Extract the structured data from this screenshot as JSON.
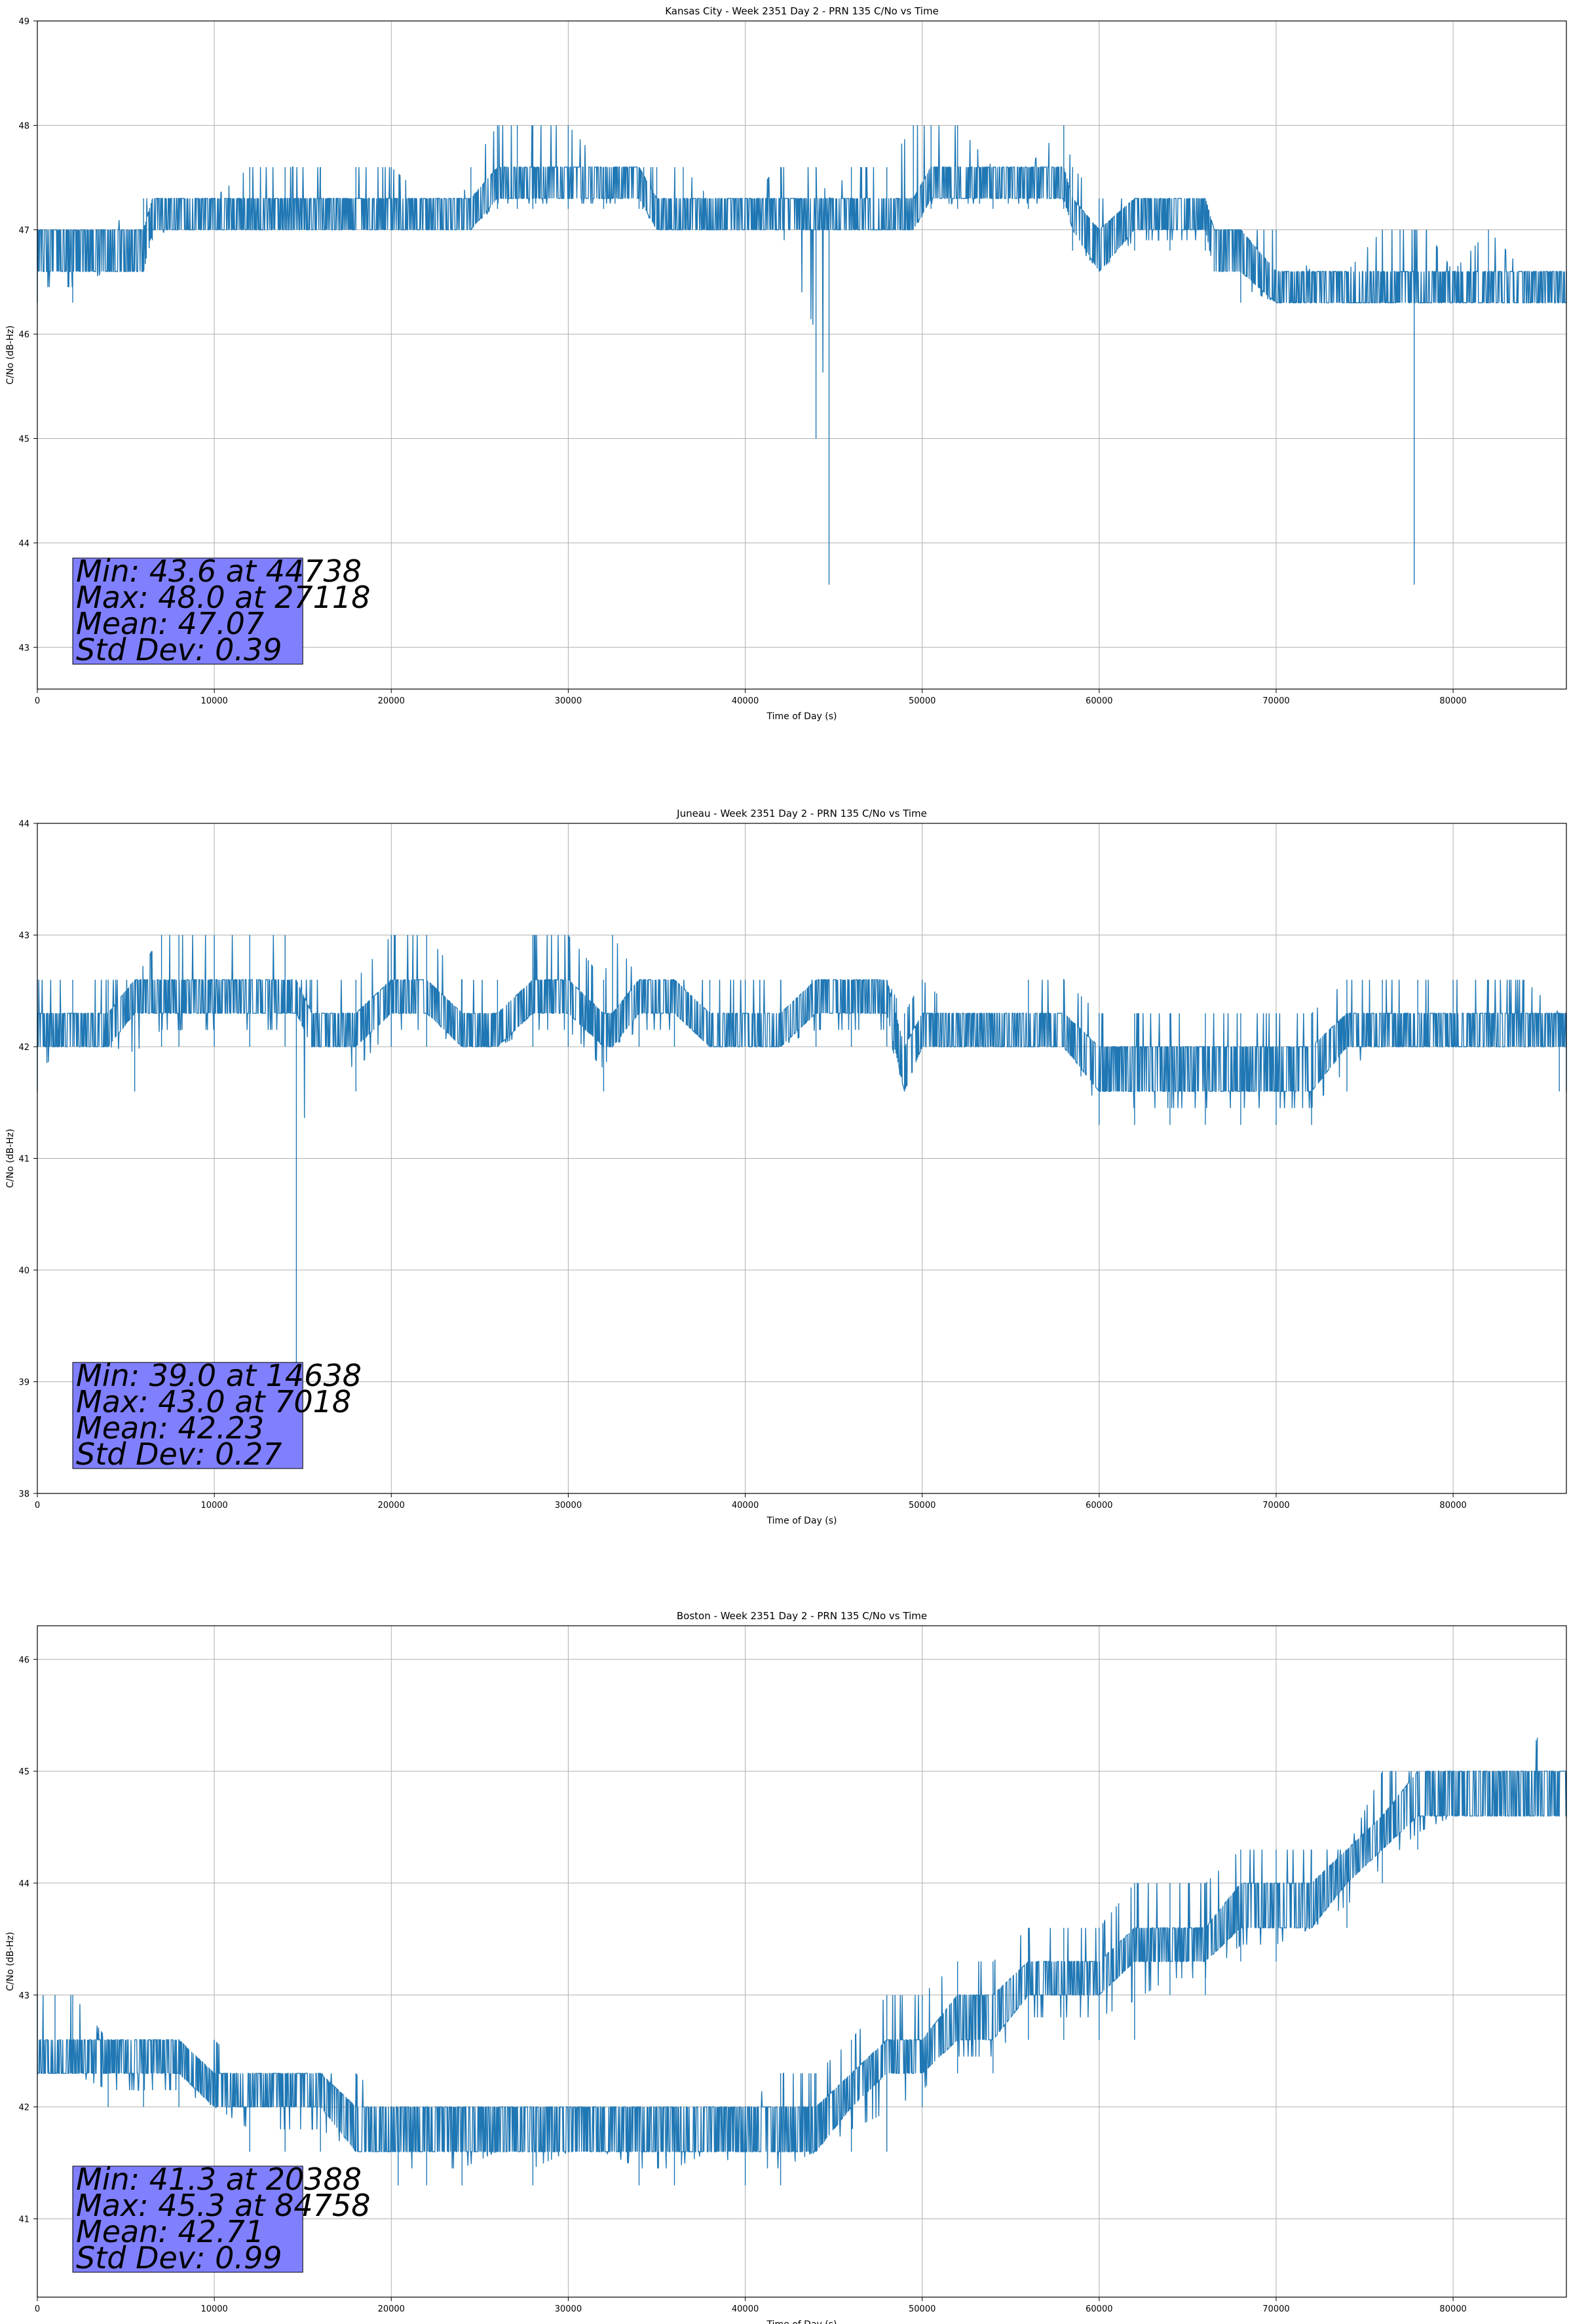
{
  "figure": {
    "colors": {
      "line": "#1f77b4",
      "grid": "#b0b0b0",
      "stats_box": "#8080ff"
    }
  },
  "chart_data": [
    {
      "type": "line",
      "title": "Kansas City - Week 2351 Day 2 - PRN 135 C/No vs Time",
      "xlabel": "Time of Day (s)",
      "ylabel": "C/No (dB-Hz)",
      "xlim": [
        0,
        86400
      ],
      "ylim": [
        42.6,
        49.0
      ],
      "xticks": [
        0,
        10000,
        20000,
        30000,
        40000,
        50000,
        60000,
        70000,
        80000
      ],
      "yticks": [
        43,
        44,
        45,
        46,
        47,
        48,
        49
      ],
      "grid": true,
      "stats": [
        "Min: 43.6 at 44738",
        "Max: 48.0 at 27118",
        "Mean: 47.07",
        "Std Dev: 0.39"
      ],
      "series": [
        {
          "x": [
            0,
            2000,
            4000,
            6000,
            6500,
            8000,
            10000,
            12000,
            14000,
            16000,
            18000,
            20000,
            22000,
            24000,
            24500,
            26000,
            27118,
            28000,
            30000,
            32000,
            34000,
            35000,
            36500,
            38000,
            40000,
            42000,
            44000,
            44738,
            46000,
            48000,
            49500,
            50500,
            52000,
            54000,
            56000,
            58000,
            58500,
            60000,
            62000,
            64000,
            66000,
            66500,
            68000,
            70000,
            72000,
            74000,
            76000,
            77000,
            77800,
            78500,
            80000,
            82000,
            84000,
            86400
          ],
          "y_low": [
            46.3,
            46.3,
            46.6,
            46.6,
            46.9,
            47.0,
            47.0,
            47.0,
            47.0,
            47.0,
            47.0,
            47.0,
            47.0,
            47.0,
            47.0,
            47.2,
            47.2,
            47.2,
            47.2,
            47.2,
            47.2,
            47.0,
            47.0,
            47.0,
            47.0,
            47.0,
            45.0,
            43.6,
            47.0,
            47.0,
            47.0,
            47.2,
            47.2,
            47.2,
            47.2,
            47.2,
            46.8,
            46.6,
            46.8,
            46.8,
            46.8,
            46.6,
            46.3,
            46.3,
            46.3,
            46.3,
            46.3,
            46.3,
            43.6,
            46.3,
            46.3,
            46.3,
            46.3,
            46.3
          ],
          "y_mid_low": [
            46.6,
            46.6,
            46.6,
            46.6,
            47.0,
            47.0,
            47.0,
            47.0,
            47.0,
            47.0,
            47.0,
            47.0,
            47.0,
            47.0,
            47.0,
            47.3,
            47.3,
            47.3,
            47.3,
            47.3,
            47.3,
            47.0,
            47.0,
            47.0,
            47.0,
            47.0,
            47.0,
            47.0,
            47.0,
            47.0,
            47.0,
            47.3,
            47.3,
            47.3,
            47.3,
            47.3,
            47.0,
            46.6,
            47.0,
            47.0,
            47.0,
            46.6,
            46.6,
            46.3,
            46.3,
            46.3,
            46.3,
            46.3,
            46.3,
            46.3,
            46.3,
            46.3,
            46.3,
            46.3
          ],
          "y_mid_high": [
            47.0,
            47.0,
            47.0,
            47.0,
            47.3,
            47.3,
            47.3,
            47.3,
            47.3,
            47.3,
            47.3,
            47.3,
            47.3,
            47.3,
            47.3,
            47.6,
            47.6,
            47.6,
            47.6,
            47.6,
            47.6,
            47.3,
            47.3,
            47.3,
            47.3,
            47.3,
            47.3,
            47.3,
            47.3,
            47.3,
            47.3,
            47.6,
            47.6,
            47.6,
            47.6,
            47.6,
            47.3,
            47.0,
            47.3,
            47.3,
            47.3,
            47.0,
            47.0,
            46.6,
            46.6,
            46.6,
            46.6,
            46.6,
            46.6,
            46.6,
            46.6,
            46.6,
            46.6,
            46.6
          ],
          "y_high": [
            47.0,
            47.0,
            47.0,
            47.3,
            47.3,
            47.3,
            47.3,
            47.6,
            47.6,
            47.6,
            47.6,
            47.6,
            47.3,
            47.3,
            47.6,
            48.0,
            48.0,
            48.0,
            48.0,
            47.6,
            47.6,
            47.6,
            47.6,
            47.3,
            47.3,
            47.6,
            47.6,
            47.3,
            47.6,
            47.6,
            48.0,
            48.0,
            48.0,
            47.6,
            47.6,
            48.0,
            47.6,
            47.3,
            47.3,
            47.3,
            47.3,
            47.0,
            47.0,
            47.0,
            46.6,
            46.6,
            47.0,
            47.0,
            47.0,
            47.0,
            46.6,
            47.0,
            46.6,
            46.6
          ]
        }
      ]
    },
    {
      "type": "line",
      "title": "Juneau - Week 2351 Day 2 - PRN 135 C/No vs Time",
      "xlabel": "Time of Day (s)",
      "ylabel": "C/No (dB-Hz)",
      "xlim": [
        0,
        86400
      ],
      "ylim": [
        38,
        44
      ],
      "xticks": [
        0,
        10000,
        20000,
        30000,
        40000,
        50000,
        60000,
        70000,
        80000
      ],
      "yticks": [
        38,
        39,
        40,
        41,
        42,
        43,
        44
      ],
      "grid": true,
      "stats": [
        "Min: 39.0 at 14638",
        "Max: 43.0 at 7018",
        "Mean: 42.23",
        "Std Dev: 0.27"
      ],
      "series": [
        {
          "x": [
            0,
            2000,
            4000,
            5500,
            7018,
            8000,
            10000,
            12000,
            14000,
            14638,
            15500,
            18000,
            20000,
            22000,
            24000,
            26000,
            28000,
            30000,
            32000,
            32500,
            34000,
            36000,
            38000,
            40000,
            42000,
            44000,
            46000,
            48000,
            49000,
            50000,
            52000,
            54000,
            56000,
            58000,
            60000,
            62000,
            64000,
            66000,
            68000,
            70000,
            72000,
            74000,
            76000,
            78000,
            80000,
            82000,
            84000,
            86000,
            86400
          ],
          "y_low": [
            41.6,
            42.0,
            42.0,
            41.6,
            42.0,
            42.0,
            42.0,
            42.0,
            42.0,
            39.0,
            42.0,
            41.6,
            42.0,
            42.0,
            42.0,
            42.0,
            42.0,
            42.0,
            41.6,
            42.0,
            42.0,
            42.0,
            42.0,
            42.0,
            42.0,
            42.0,
            42.0,
            42.0,
            41.6,
            42.0,
            42.0,
            42.0,
            42.0,
            42.0,
            41.3,
            41.3,
            41.3,
            41.3,
            41.3,
            41.3,
            41.3,
            41.6,
            42.0,
            42.0,
            42.0,
            42.0,
            42.0,
            41.6,
            41.6
          ],
          "y_mid_low": [
            42.0,
            42.0,
            42.0,
            42.3,
            42.3,
            42.3,
            42.3,
            42.3,
            42.3,
            42.3,
            42.0,
            42.0,
            42.3,
            42.3,
            42.0,
            42.0,
            42.3,
            42.3,
            42.0,
            42.0,
            42.3,
            42.3,
            42.0,
            42.0,
            42.0,
            42.3,
            42.3,
            42.3,
            41.6,
            42.0,
            42.0,
            42.0,
            42.0,
            42.0,
            41.6,
            41.6,
            41.6,
            41.6,
            41.6,
            41.6,
            41.6,
            42.0,
            42.0,
            42.0,
            42.0,
            42.0,
            42.0,
            42.0,
            42.0
          ],
          "y_mid_high": [
            42.3,
            42.3,
            42.3,
            42.6,
            42.6,
            42.6,
            42.6,
            42.6,
            42.6,
            42.6,
            42.3,
            42.3,
            42.6,
            42.6,
            42.3,
            42.3,
            42.6,
            42.6,
            42.3,
            42.3,
            42.6,
            42.6,
            42.3,
            42.3,
            42.3,
            42.6,
            42.6,
            42.6,
            42.0,
            42.3,
            42.3,
            42.3,
            42.3,
            42.3,
            42.0,
            42.0,
            42.0,
            42.0,
            42.0,
            42.0,
            42.0,
            42.3,
            42.3,
            42.3,
            42.3,
            42.3,
            42.3,
            42.3,
            42.3
          ],
          "y_high": [
            42.6,
            42.6,
            42.6,
            42.6,
            43.0,
            43.0,
            43.0,
            43.0,
            43.0,
            42.6,
            42.6,
            42.6,
            43.0,
            43.0,
            42.6,
            42.6,
            43.0,
            43.0,
            42.6,
            43.0,
            42.6,
            42.6,
            42.6,
            42.6,
            42.6,
            42.6,
            42.6,
            42.6,
            42.3,
            42.6,
            42.3,
            42.3,
            42.6,
            42.6,
            42.3,
            42.3,
            42.3,
            42.3,
            42.3,
            42.3,
            42.3,
            42.6,
            42.6,
            42.6,
            42.6,
            42.6,
            42.6,
            42.3,
            42.3
          ]
        }
      ]
    },
    {
      "type": "line",
      "title": "Boston - Week 2351 Day 2 - PRN 135 C/No vs Time",
      "xlabel": "Time of Day (s)",
      "ylabel": "C/No (dB-Hz)",
      "xlim": [
        0,
        86400
      ],
      "ylim": [
        40.3,
        46.3
      ],
      "xticks": [
        0,
        10000,
        20000,
        30000,
        40000,
        50000,
        60000,
        70000,
        80000
      ],
      "yticks": [
        41,
        42,
        43,
        44,
        45,
        46
      ],
      "grid": true,
      "stats": [
        "Min: 41.3 at 20388",
        "Max: 45.3 at 84758",
        "Mean: 42.71",
        "Std Dev: 0.99"
      ],
      "series": [
        {
          "x": [
            0,
            1000,
            2000,
            4000,
            6000,
            8000,
            10000,
            12000,
            14000,
            16000,
            18000,
            20000,
            20388,
            22000,
            24000,
            26000,
            28000,
            30000,
            32000,
            34000,
            36000,
            38000,
            40000,
            42000,
            44000,
            46000,
            48000,
            50000,
            52000,
            54000,
            56000,
            58000,
            60000,
            62000,
            64000,
            66000,
            68000,
            70000,
            72000,
            74000,
            76000,
            78000,
            80000,
            82000,
            84000,
            84758,
            86000,
            86400
          ],
          "y_low": [
            42.3,
            42.3,
            42.3,
            42.0,
            42.0,
            42.0,
            42.0,
            41.6,
            41.6,
            41.6,
            41.6,
            41.6,
            41.3,
            41.3,
            41.3,
            41.6,
            41.3,
            41.6,
            41.6,
            41.3,
            41.3,
            41.6,
            41.3,
            41.3,
            41.6,
            41.6,
            41.6,
            42.0,
            42.3,
            42.3,
            42.6,
            42.6,
            42.6,
            42.6,
            43.0,
            43.0,
            43.3,
            43.3,
            43.6,
            43.6,
            44.0,
            44.3,
            44.6,
            44.6,
            44.6,
            44.6,
            44.6,
            44.6
          ],
          "y_mid_low": [
            42.3,
            42.3,
            42.3,
            42.3,
            42.3,
            42.3,
            42.0,
            42.0,
            42.0,
            42.0,
            41.6,
            41.6,
            41.6,
            41.6,
            41.6,
            41.6,
            41.6,
            41.6,
            41.6,
            41.6,
            41.6,
            41.6,
            41.6,
            41.6,
            41.6,
            42.0,
            42.3,
            42.3,
            42.6,
            42.6,
            43.0,
            43.0,
            43.0,
            43.3,
            43.3,
            43.3,
            43.6,
            43.6,
            43.6,
            44.0,
            44.3,
            44.6,
            44.6,
            44.6,
            44.6,
            44.6,
            44.6,
            44.6
          ],
          "y_mid_high": [
            42.6,
            42.6,
            42.6,
            42.6,
            42.6,
            42.6,
            42.3,
            42.3,
            42.3,
            42.3,
            42.0,
            42.0,
            42.0,
            42.0,
            42.0,
            42.0,
            42.0,
            42.0,
            42.0,
            42.0,
            42.0,
            42.0,
            42.0,
            42.0,
            42.0,
            42.3,
            42.6,
            42.6,
            43.0,
            43.0,
            43.3,
            43.3,
            43.3,
            43.6,
            43.6,
            43.6,
            44.0,
            44.0,
            44.0,
            44.3,
            44.6,
            45.0,
            45.0,
            45.0,
            45.0,
            45.0,
            45.0,
            45.0
          ],
          "y_high": [
            43.0,
            43.0,
            43.0,
            42.6,
            42.6,
            42.6,
            42.6,
            42.3,
            42.3,
            42.3,
            42.3,
            42.0,
            42.0,
            42.0,
            42.0,
            42.0,
            42.0,
            42.0,
            42.0,
            42.0,
            42.0,
            42.0,
            42.0,
            42.3,
            42.3,
            42.6,
            43.0,
            43.0,
            43.3,
            43.3,
            43.6,
            43.6,
            43.6,
            44.0,
            44.0,
            44.0,
            44.3,
            44.3,
            44.3,
            44.3,
            45.0,
            45.0,
            45.0,
            45.0,
            45.0,
            45.3,
            45.0,
            45.0
          ]
        }
      ]
    }
  ]
}
